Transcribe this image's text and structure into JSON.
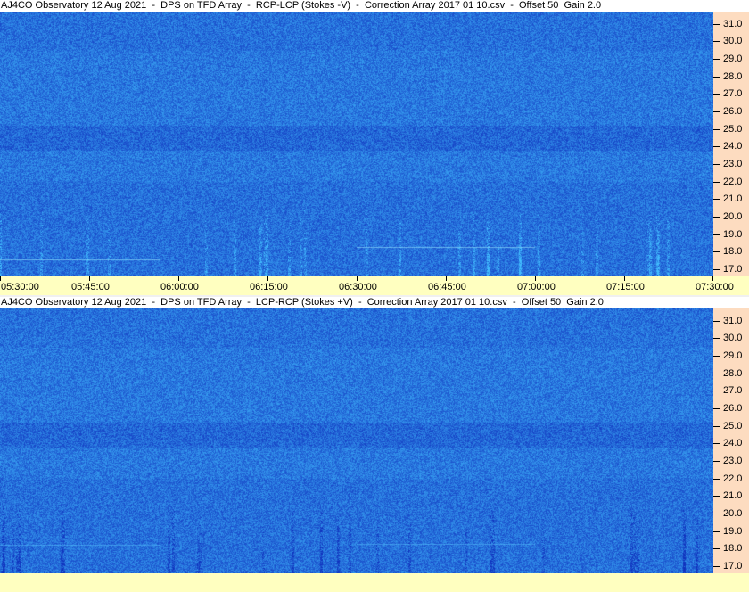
{
  "chart_data": [
    {
      "type": "heatmap",
      "title": "AJ4CO Observatory 12 Aug 2021  -  DPS on TFD Array  -  RCP-LCP (Stokes -V)  -  Correction Array 2017 01 10.csv  -  Offset 50  Gain 2.0",
      "x_ticks": [
        "05:30:00",
        "05:45:00",
        "06:00:00",
        "06:15:00",
        "06:30:00",
        "06:45:00",
        "07:00:00",
        "07:15:00",
        "07:30:00"
      ],
      "y_ticks": [
        "31.0",
        "30.0",
        "29.0",
        "28.0",
        "27.0",
        "26.0",
        "25.0",
        "24.0",
        "23.0",
        "22.0",
        "21.0",
        "20.0",
        "19.0",
        "18.0",
        "17.0"
      ],
      "xlim": [
        "05:30:00",
        "07:30:00"
      ],
      "ylim": [
        16.6,
        31.7
      ],
      "colormap": [
        "#1040c0",
        "#1e64f0",
        "#40b0ff"
      ]
    },
    {
      "type": "heatmap",
      "title": "AJ4CO Observatory 12 Aug 2021  -  DPS on TFD Array  -  LCP-RCP (Stokes +V)  -  Correction Array 2017 01 10.csv  -  Offset 50  Gain 2.0",
      "x_ticks": [],
      "y_ticks": [
        "31.0",
        "30.0",
        "29.0",
        "28.0",
        "27.0",
        "26.0",
        "25.0",
        "24.0",
        "23.0",
        "22.0",
        "21.0",
        "20.0",
        "19.0",
        "18.0",
        "17.0"
      ],
      "ylim": [
        16.6,
        31.7
      ],
      "colormap": [
        "#1040c0",
        "#1e64f0",
        "#40b0ff"
      ]
    }
  ]
}
